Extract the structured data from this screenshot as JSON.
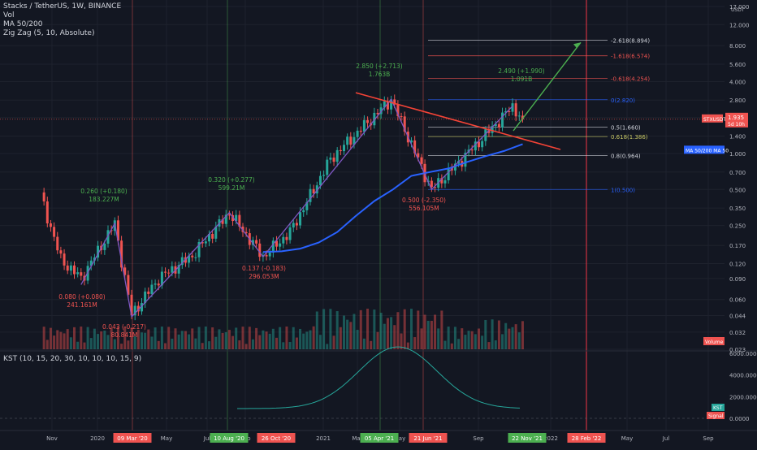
{
  "header": {
    "title": "Stacks / TetherUS, 1W, BINANCE",
    "indicators": [
      "Vol",
      "MA 50/200",
      "Zig Zag (5, 10, Absolute)"
    ]
  },
  "price_axis": {
    "unit": "USDT",
    "ticks": [
      "17.000",
      "12.000",
      "8.000",
      "5.600",
      "4.000",
      "2.800",
      "2.000",
      "1.400",
      "1.000",
      "0.700",
      "0.500",
      "0.350",
      "0.250",
      "0.170",
      "0.120",
      "0.090",
      "0.060",
      "0.044",
      "0.032",
      "0.023"
    ]
  },
  "price_badge": {
    "symbol": "STXUSDT",
    "price": "1.935",
    "countdown": "5d 10h"
  },
  "ma_badge": "MA 50/200 MA 50",
  "volume_badge": "Volume",
  "fib_levels": [
    {
      "label": "-2.618(8.894)",
      "value": 8.894
    },
    {
      "label": "-1.618(6.574)",
      "value": 6.574
    },
    {
      "label": "-0.618(4.254)",
      "value": 4.254
    },
    {
      "label": "0(2.820)",
      "value": 2.82
    },
    {
      "label": "0.5(1.660)",
      "value": 1.66
    },
    {
      "label": "0.618(1.386)",
      "value": 1.386
    },
    {
      "label": "0.8(0.964)",
      "value": 0.964
    },
    {
      "label": "1(0.500)",
      "value": 0.5
    }
  ],
  "zigzag_labels": [
    {
      "line1": "0.260 (+0.180)",
      "line2": "183.227M",
      "color": "#4caf50"
    },
    {
      "line1": "0.080 (+0.080)",
      "line2": "241.161M",
      "color": "#ef5350"
    },
    {
      "line1": "0.043 (-0.217)",
      "line2": "80.841M",
      "color": "#ef5350"
    },
    {
      "line1": "0.320 (+0.277)",
      "line2": "599.21M",
      "color": "#4caf50"
    },
    {
      "line1": "0.137 (-0.183)",
      "line2": "296.053M",
      "color": "#ef5350"
    },
    {
      "line1": "2.850 (+2.713)",
      "line2": "1.763B",
      "color": "#4caf50"
    },
    {
      "line1": "0.500 (-2.350)",
      "line2": "556.105M",
      "color": "#ef5350"
    },
    {
      "line1": "2.490 (+1.990)",
      "line2": "1.091B",
      "color": "#4caf50"
    }
  ],
  "kst": {
    "title": "KST (10, 15, 20, 30, 10, 10, 10, 15, 9)",
    "ticks": [
      "6000.0000",
      "4000.0000",
      "2000.0000",
      "0.0000"
    ],
    "kst_label": "KST",
    "signal_label": "Signal"
  },
  "time_axis": {
    "labels": [
      "Nov",
      "2020",
      "May",
      "Jul",
      "Sep",
      "2021",
      "Mar",
      "May",
      "Sep",
      "2022",
      "May",
      "Jul",
      "Sep"
    ],
    "highlighted": [
      "09 Mar '20",
      "10 Aug '20",
      "26 Oct '20",
      "05 Apr '21",
      "21 Jun '21",
      "22 Nov '21",
      "28 Feb '22"
    ]
  },
  "colors": {
    "up": "#26a69a",
    "down": "#ef5350",
    "ma": "#2962ff",
    "zigzag": "#7e57c2",
    "kst": "#26a69a",
    "signal": "#ef5350",
    "trendline": "#f44336",
    "arrow": "#4caf50"
  },
  "chart_data": {
    "type": "candlestick",
    "title": "Stacks / TetherUS, 1W, BINANCE",
    "yscale": "log",
    "ylim": [
      0.023,
      17.0
    ],
    "series": [
      {
        "name": "MA 50",
        "values": [
          0.15,
          0.152,
          0.16,
          0.18,
          0.22,
          0.3,
          0.4,
          0.5,
          0.65,
          0.7,
          0.75,
          0.85,
          0.95,
          1.05,
          1.2
        ]
      }
    ],
    "zigzag": [
      0.26,
      0.08,
      0.043,
      0.32,
      0.137,
      2.85,
      0.5,
      2.49
    ],
    "fibonacci": [
      8.894,
      6.574,
      4.254,
      2.82,
      1.66,
      1.386,
      0.964,
      0.5
    ],
    "last_price": 1.935
  }
}
